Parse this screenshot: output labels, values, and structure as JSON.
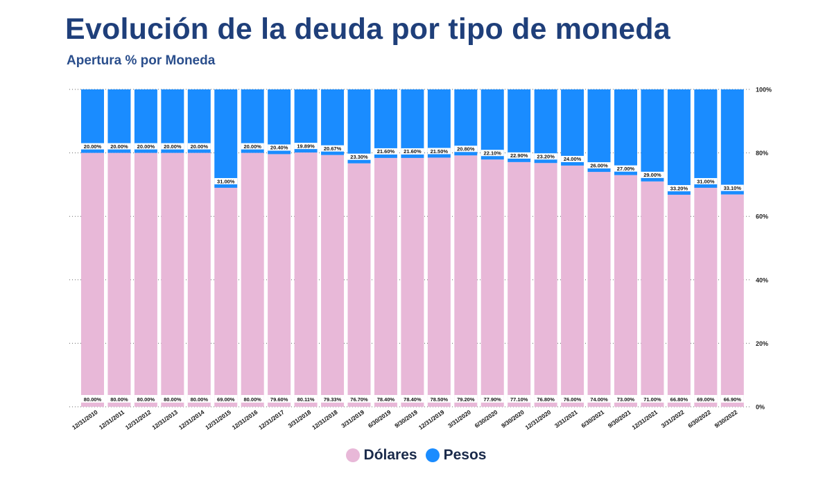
{
  "header": {
    "title": "Evolución de la deuda por tipo de moneda",
    "subtitle": "Apertura % por Moneda"
  },
  "colors": {
    "dolares": "#e8b8d8",
    "pesos": "#1a8cff",
    "label_band": "#ffffff",
    "grid": "#666666"
  },
  "chart_data": {
    "type": "bar",
    "stacked": true,
    "normalized": true,
    "categories": [
      "12/31/2010",
      "12/31/2011",
      "12/31/2012",
      "12/31/2013",
      "12/31/2014",
      "12/31/2015",
      "12/31/2016",
      "12/31/2017",
      "3/31/2018",
      "12/31/2018",
      "3/31/2019",
      "6/30/2019",
      "9/30/2019",
      "12/31/2019",
      "3/31/2020",
      "6/30/2020",
      "9/30/2020",
      "12/31/2020",
      "3/31/2021",
      "6/30/2021",
      "9/30/2021",
      "12/31/2021",
      "3/31/2022",
      "6/30/2022",
      "9/30/2022"
    ],
    "series": [
      {
        "name": "Dólares",
        "values": [
          80.0,
          80.0,
          80.0,
          80.0,
          80.0,
          69.0,
          80.0,
          79.6,
          80.11,
          79.33,
          76.7,
          78.4,
          78.4,
          78.5,
          79.2,
          77.9,
          77.1,
          76.8,
          76.0,
          74.0,
          73.0,
          71.0,
          66.8,
          69.0,
          66.9
        ],
        "labels": [
          "80.00%",
          "80.00%",
          "80.00%",
          "80.00%",
          "80.00%",
          "69.00%",
          "80.00%",
          "79.60%",
          "80.11%",
          "79.33%",
          "76.70%",
          "78.40%",
          "78.40%",
          "78.50%",
          "79.20%",
          "77.90%",
          "77.10%",
          "76.80%",
          "76.00%",
          "74.00%",
          "73.00%",
          "71.00%",
          "66.80%",
          "69.00%",
          "66.90%"
        ]
      },
      {
        "name": "Pesos",
        "values": [
          20.0,
          20.0,
          20.0,
          20.0,
          20.0,
          31.0,
          20.0,
          20.4,
          19.89,
          20.67,
          23.3,
          21.6,
          21.6,
          21.5,
          20.8,
          22.1,
          22.9,
          23.2,
          24.0,
          26.0,
          27.0,
          29.0,
          33.2,
          31.0,
          33.1
        ],
        "labels": [
          "20.00%",
          "20.00%",
          "20.00%",
          "20.00%",
          "20.00%",
          "31.00%",
          "20.00%",
          "20.40%",
          "19.89%",
          "20.67%",
          "23.30%",
          "21.60%",
          "21.60%",
          "21.50%",
          "20.80%",
          "22.10%",
          "22.90%",
          "23.20%",
          "24.00%",
          "26.00%",
          "27.00%",
          "29.00%",
          "33.20%",
          "31.00%",
          "33.10%"
        ]
      }
    ],
    "y_ticks": [
      "0%",
      "20%",
      "40%",
      "60%",
      "80%",
      "100%"
    ],
    "ylim": [
      0,
      100
    ],
    "y_axis_side": "right",
    "grid": true,
    "legend_position": "bottom"
  }
}
